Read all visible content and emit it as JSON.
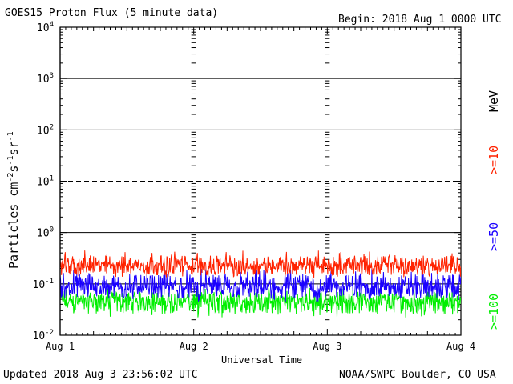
{
  "header": {
    "title": "GOES15 Proton Flux (5 minute data)",
    "begin": "Begin: 2018 Aug 1 0000 UTC"
  },
  "footer": {
    "updated": "Updated 2018 Aug  3 23:56:02 UTC",
    "credit": "NOAA/SWPC Boulder, CO USA"
  },
  "chart_data": {
    "type": "line",
    "title": "GOES15 Proton Flux (5 minute data)",
    "xlabel": "Universal Time",
    "ylabel": "Particles cm-2s-1sr-1",
    "yscale": "log",
    "ylim": [
      0.01,
      10000
    ],
    "xlim": [
      0,
      3
    ],
    "x_ticks": [
      "Aug 1",
      "Aug 2",
      "Aug 3",
      "Aug 4"
    ],
    "y_ticks": [
      {
        "base": "10",
        "exp": "-2"
      },
      {
        "base": "10",
        "exp": "-1"
      },
      {
        "base": "10",
        "exp": "0"
      },
      {
        "base": "10",
        "exp": "1"
      },
      {
        "base": "10",
        "exp": "2"
      },
      {
        "base": "10",
        "exp": "3"
      },
      {
        "base": "10",
        "exp": "4"
      }
    ],
    "grid": "horizontal at decades; dashed at 10^1",
    "legend": {
      "unit": "MeV",
      "position": "right, vertical",
      "entries": [
        {
          "label": ">=10",
          "color": "#ff2200"
        },
        {
          "label": ">=50",
          "color": "#1a00ff"
        },
        {
          "label": ">=100",
          "color": "#00ee00"
        }
      ]
    },
    "series": [
      {
        "name": ">=10",
        "color": "#ff2200",
        "baseline": 0.2,
        "min": 0.13,
        "max": 0.45
      },
      {
        "name": ">=50",
        "color": "#1a00ff",
        "baseline": 0.075,
        "min": 0.045,
        "max": 0.2
      },
      {
        "name": ">=100",
        "color": "#00ee00",
        "baseline": 0.04,
        "min": 0.022,
        "max": 0.09
      }
    ]
  }
}
